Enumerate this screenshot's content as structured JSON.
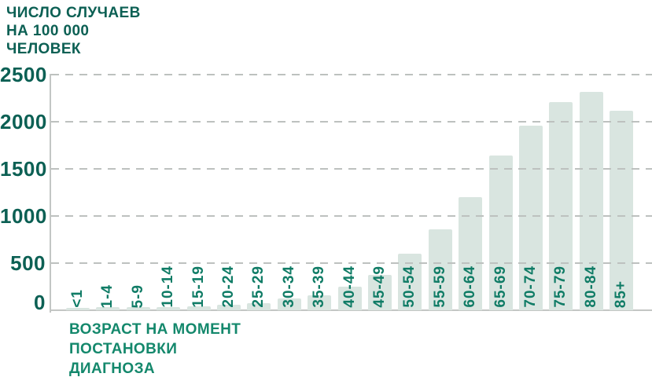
{
  "chart_data": {
    "type": "bar",
    "title_lines": [
      "ЧИСЛО СЛУЧАЕВ",
      "НА 100 000",
      "ЧЕЛОВЕК"
    ],
    "xlabel_lines": [
      "ВОЗРАСТ НА МОМЕНТ",
      "ПОСТАНОВКИ",
      "ДИАГНОЗА"
    ],
    "categories": [
      "<1",
      "1-4",
      "5-9",
      "10-14",
      "15-19",
      "20-24",
      "25-29",
      "30-34",
      "35-39",
      "40-44",
      "45-49",
      "50-54",
      "55-59",
      "60-64",
      "65-69",
      "70-74",
      "75-79",
      "80-84",
      "85+"
    ],
    "values": [
      25,
      30,
      30,
      35,
      45,
      60,
      75,
      125,
      160,
      250,
      375,
      600,
      860,
      1200,
      1640,
      1960,
      2205,
      2320,
      2115
    ],
    "y_ticks": [
      2500,
      2000,
      1500,
      1000,
      500,
      0
    ],
    "ylim": [
      0,
      2500
    ],
    "grid": "horizontal-dashed",
    "legend": "none",
    "bar_color": "#d9e5e0",
    "axis_text_color": "#0c6054",
    "category_text_color": "#107c66",
    "xlabel_color": "#14886c",
    "gridline_color": "#bdc1bf"
  }
}
